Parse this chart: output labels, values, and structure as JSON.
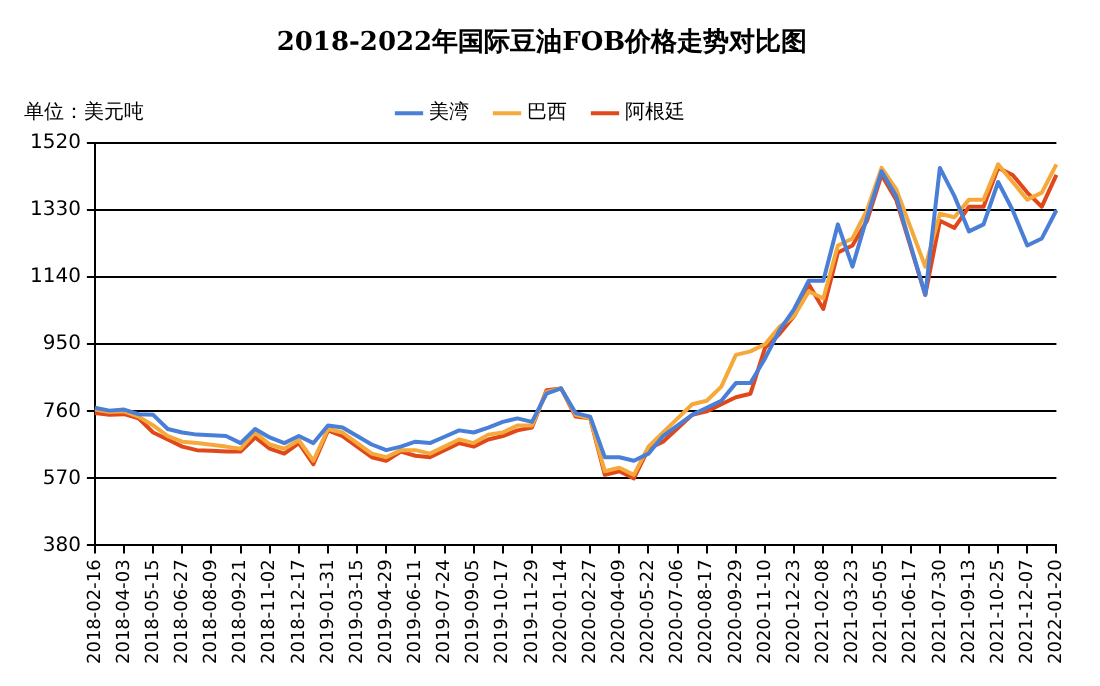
{
  "chart_data": {
    "type": "line",
    "title": "2018-2022年国际豆油FOB价格走势对比图",
    "ylabel": "单位：美元吨",
    "categories": [
      "2018-02-16",
      null,
      "2018-04-03",
      null,
      "2018-05-15",
      null,
      "2018-06-27",
      null,
      "2018-08-09",
      null,
      "2018-09-21",
      null,
      "2018-11-02",
      null,
      "2018-12-17",
      null,
      "2019-01-31",
      null,
      "2019-03-15",
      null,
      "2019-04-29",
      null,
      "2019-06-11",
      null,
      "2019-07-24",
      null,
      "2019-09-05",
      null,
      "2019-10-17",
      null,
      "2019-11-29",
      null,
      "2020-01-14",
      null,
      "2020-02-27",
      null,
      "2020-04-09",
      null,
      "2020-05-22",
      null,
      "2020-07-06",
      null,
      "2020-08-17",
      null,
      "2020-09-29",
      null,
      "2020-11-10",
      null,
      "2020-12-23",
      null,
      "2021-02-08",
      null,
      "2021-03-23",
      null,
      "2021-05-05",
      null,
      "2021-06-17",
      null,
      "2021-07-30",
      null,
      "2021-09-13",
      null,
      "2021-10-25",
      null,
      "2021-12-07",
      null,
      "2022-01-20"
    ],
    "series": [
      {
        "name": "美湾",
        "color": "#4a7fd8",
        "values": [
          770,
          762,
          765,
          752,
          750,
          710,
          700,
          694,
          692,
          690,
          670,
          710,
          686,
          670,
          690,
          670,
          720,
          714,
          690,
          666,
          650,
          660,
          674,
          670,
          688,
          706,
          700,
          714,
          730,
          740,
          730,
          810,
          825,
          755,
          745,
          630,
          630,
          620,
          640,
          690,
          720,
          750,
          770,
          790,
          840,
          840,
          910,
          990,
          1050,
          1130,
          1130,
          1290,
          1170,
          1310,
          1440,
          1370,
          1230,
          1090,
          1450,
          1370,
          1270,
          1290,
          1410,
          1330,
          1230,
          1250,
          1330
        ]
      },
      {
        "name": "巴西",
        "color": "#f5a93b",
        "values": [
          765,
          758,
          760,
          745,
          720,
          690,
          674,
          670,
          665,
          660,
          654,
          700,
          666,
          654,
          678,
          620,
          710,
          700,
          670,
          640,
          630,
          650,
          650,
          640,
          660,
          680,
          670,
          694,
          700,
          720,
          720,
          815,
          825,
          750,
          740,
          590,
          600,
          580,
          660,
          700,
          740,
          780,
          790,
          830,
          920,
          930,
          950,
          1000,
          1030,
          1100,
          1080,
          1230,
          1250,
          1330,
          1450,
          1390,
          1280,
          1170,
          1320,
          1310,
          1360,
          1360,
          1460,
          1410,
          1360,
          1380,
          1460
        ]
      },
      {
        "name": "阿根廷",
        "color": "#e0481a",
        "values": [
          755,
          750,
          752,
          740,
          700,
          680,
          660,
          650,
          648,
          646,
          646,
          686,
          654,
          640,
          670,
          610,
          706,
          690,
          660,
          630,
          620,
          646,
          634,
          630,
          650,
          670,
          660,
          680,
          690,
          706,
          714,
          820,
          825,
          745,
          740,
          580,
          590,
          570,
          654,
          674,
          712,
          750,
          760,
          780,
          800,
          810,
          940,
          980,
          1030,
          1120,
          1050,
          1210,
          1230,
          1300,
          1430,
          1360,
          1225,
          1090,
          1300,
          1280,
          1340,
          1340,
          1450,
          1430,
          1380,
          1340,
          1430
        ]
      }
    ],
    "ylim": [
      380,
      1520
    ],
    "yticks": [
      380,
      570,
      760,
      950,
      1140,
      1330,
      1520
    ],
    "grid": "y",
    "legend": "top",
    "marker": "none",
    "line_style": "solid"
  }
}
